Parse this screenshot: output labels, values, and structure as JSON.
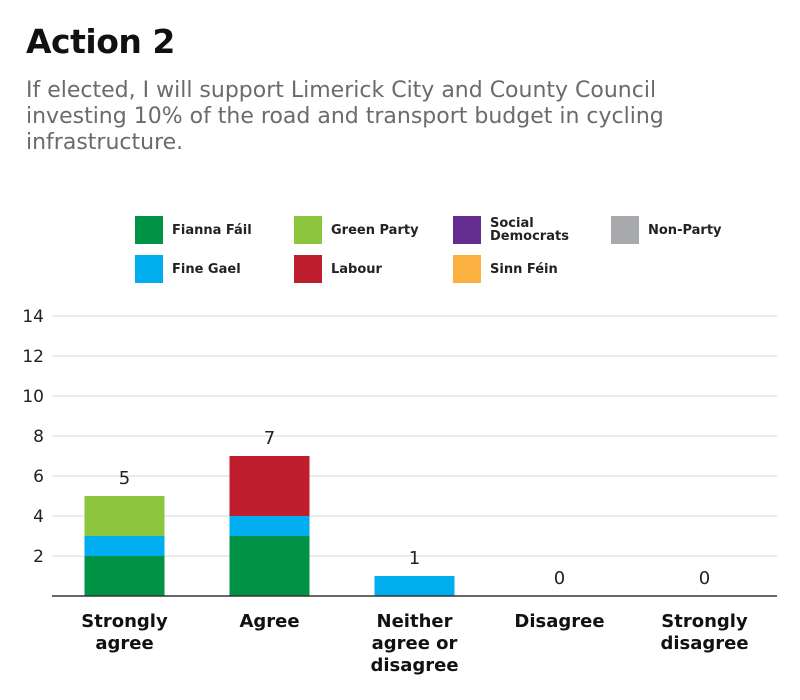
{
  "header": {
    "title": "Action 2",
    "subtitle": "If elected, I will support Limerick City and County Council investing 10% of the road and transport budget in cycling infrastructure."
  },
  "legend": {
    "items": [
      {
        "label": "Fianna Fáil",
        "color": "#009245"
      },
      {
        "label": "Green Party",
        "color": "#8cc63f"
      },
      {
        "label": "Social Democrats",
        "color": "#662d91"
      },
      {
        "label": "Non-Party",
        "color": "#a7a9ac"
      },
      {
        "label": "Fine Gael",
        "color": "#00aeef"
      },
      {
        "label": "Labour",
        "color": "#be1e2d"
      },
      {
        "label": "Sinn Féin",
        "color": "#fbb040"
      }
    ]
  },
  "chart_data": {
    "type": "bar",
    "stacked": true,
    "title": "Action 2",
    "xlabel": "",
    "ylabel": "",
    "ylim": [
      0,
      14
    ],
    "yticks": [
      2,
      4,
      6,
      8,
      10,
      12,
      14
    ],
    "grid": true,
    "categories": [
      [
        "Strongly",
        "agree"
      ],
      [
        "Agree"
      ],
      [
        "Neither",
        "agree or",
        "disagree"
      ],
      [
        "Disagree"
      ],
      [
        "Strongly",
        "disagree"
      ]
    ],
    "totals": [
      "5",
      "7",
      "1",
      "0",
      "0"
    ],
    "series": [
      {
        "name": "Fianna Fáil",
        "color": "#009245",
        "values": [
          2,
          3,
          0,
          0,
          0
        ]
      },
      {
        "name": "Fine Gael",
        "color": "#00aeef",
        "values": [
          1,
          1,
          1,
          0,
          0
        ]
      },
      {
        "name": "Green Party",
        "color": "#8cc63f",
        "values": [
          2,
          0,
          0,
          0,
          0
        ]
      },
      {
        "name": "Labour",
        "color": "#be1e2d",
        "values": [
          0,
          3,
          0,
          0,
          0
        ]
      },
      {
        "name": "Social Democrats",
        "color": "#662d91",
        "values": [
          0,
          0,
          0,
          0,
          0
        ]
      },
      {
        "name": "Sinn Féin",
        "color": "#fbb040",
        "values": [
          0,
          0,
          0,
          0,
          0
        ]
      },
      {
        "name": "Non-Party",
        "color": "#a7a9ac",
        "values": [
          0,
          0,
          0,
          0,
          0
        ]
      }
    ]
  }
}
